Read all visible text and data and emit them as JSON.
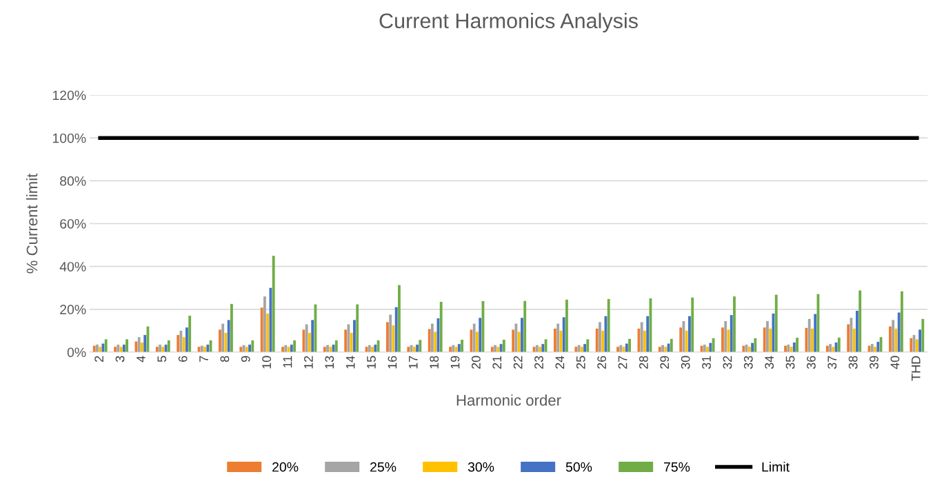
{
  "chart_data": {
    "type": "bar",
    "title": "Current Harmonics Analysis",
    "xlabel": "Harmonic order",
    "ylabel": "% Current limit",
    "categories": [
      "2",
      "3",
      "4",
      "5",
      "6",
      "7",
      "8",
      "9",
      "10",
      "11",
      "12",
      "13",
      "14",
      "15",
      "16",
      "17",
      "18",
      "19",
      "20",
      "21",
      "22",
      "23",
      "24",
      "25",
      "26",
      "27",
      "28",
      "29",
      "30",
      "31",
      "32",
      "33",
      "34",
      "35",
      "36",
      "37",
      "38",
      "39",
      "40",
      "THD"
    ],
    "series": [
      {
        "name": "20%",
        "color": "#ed7d31",
        "values": [
          3,
          2.5,
          5,
          2.5,
          8,
          2.5,
          10.5,
          2.5,
          20.8,
          2.5,
          10.5,
          2.5,
          10.5,
          2.5,
          14,
          2.5,
          10.8,
          2.5,
          10.5,
          2.5,
          10.5,
          2.5,
          11,
          2.5,
          11,
          2.5,
          11,
          2.5,
          11.5,
          3,
          11.5,
          3,
          11.5,
          3,
          11.3,
          3,
          13,
          3,
          12,
          6.5
        ]
      },
      {
        "name": "25%",
        "color": "#a5a5a5",
        "values": [
          3.5,
          3.5,
          7,
          3.5,
          10,
          3,
          13.3,
          3.3,
          26,
          3.3,
          13,
          3.3,
          13,
          3.3,
          17.5,
          3.3,
          13.3,
          3.3,
          13.3,
          3.3,
          13.3,
          3.3,
          13.3,
          3.3,
          14,
          3.3,
          14,
          3.3,
          14.5,
          3.5,
          14.5,
          3.5,
          14.5,
          3.5,
          15.5,
          3.8,
          16,
          3.8,
          15,
          8
        ]
      },
      {
        "name": "30%",
        "color": "#ffc000",
        "values": [
          2.5,
          2.5,
          4.5,
          2.5,
          7,
          2.5,
          9,
          2.5,
          18,
          2.5,
          9,
          2.5,
          9,
          2.5,
          12.5,
          2.5,
          9.5,
          2.5,
          9.5,
          2.5,
          9.5,
          2.5,
          10,
          2.5,
          10,
          2.5,
          10,
          2.5,
          10,
          2.5,
          10.5,
          2.5,
          11,
          2.5,
          11,
          2.5,
          11,
          2.5,
          11,
          6
        ]
      },
      {
        "name": "50%",
        "color": "#4472c4",
        "values": [
          4,
          3.5,
          8,
          3.5,
          11.5,
          3.5,
          15,
          3.5,
          30,
          3.5,
          15,
          3.5,
          15,
          3.5,
          21,
          3.5,
          15.8,
          3.8,
          16,
          3.8,
          16,
          3.8,
          16.3,
          3.8,
          16.8,
          4,
          16.8,
          4,
          16.8,
          4.3,
          17.3,
          4.3,
          18,
          4.5,
          17.8,
          4.5,
          19.3,
          4.8,
          18.5,
          10.5
        ]
      },
      {
        "name": "75%",
        "color": "#70ad47",
        "values": [
          6,
          6,
          12,
          5.5,
          17,
          5.5,
          22.5,
          5.5,
          45,
          5.5,
          22.3,
          5.5,
          22.3,
          5.5,
          31.3,
          5.7,
          23.5,
          5.8,
          23.8,
          5.8,
          23.9,
          6,
          24.5,
          6,
          24.8,
          6.2,
          25.1,
          6.2,
          25.5,
          6.5,
          26,
          6.5,
          26.8,
          6.7,
          27.1,
          6.8,
          28.8,
          7,
          28.4,
          15.5
        ]
      },
      {
        "name": "Limit",
        "type": "line",
        "color": "#000000",
        "values": [
          100,
          100,
          100,
          100,
          100,
          100,
          100,
          100,
          100,
          100,
          100,
          100,
          100,
          100,
          100,
          100,
          100,
          100,
          100,
          100,
          100,
          100,
          100,
          100,
          100,
          100,
          100,
          100,
          100,
          100,
          100,
          100,
          100,
          100,
          100,
          100,
          100,
          100,
          100,
          100
        ]
      }
    ],
    "ylim": [
      0,
      120
    ],
    "yticks": [
      {
        "value": 0,
        "label": "0%"
      },
      {
        "value": 20,
        "label": "20%"
      },
      {
        "value": 40,
        "label": "40%"
      },
      {
        "value": 60,
        "label": "60%"
      },
      {
        "value": 80,
        "label": "80%"
      },
      {
        "value": 100,
        "label": "100%"
      },
      {
        "value": 120,
        "label": "120%"
      }
    ],
    "grid": "y",
    "legend": "bottom",
    "marker": "none",
    "line_style": "solid"
  }
}
